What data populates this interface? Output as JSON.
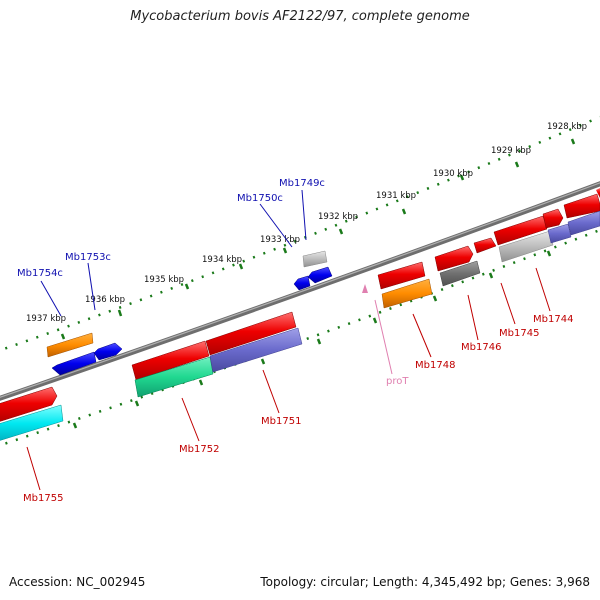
{
  "title": "Mycobacterium bovis AF2122/97, complete genome",
  "footer": {
    "accession": "Accession: NC_002945",
    "summary": "Topology: circular; Length: 4,345,492 bp; Genes: 3,968"
  },
  "kbp_ticks": [
    "1928 kbp",
    "1929 kbp",
    "1930 kbp",
    "1931 kbp",
    "1932 kbp",
    "1933 kbp",
    "1934 kbp",
    "1935 kbp",
    "1936 kbp",
    "1937 kbp"
  ],
  "colors": {
    "tick_green": "#1a7a1a",
    "backbone": "#7a7a7a",
    "plus_strand_label": "#1010b0",
    "minus_strand_label": "#c00000",
    "rna_label": "#e080b0"
  },
  "genes": [
    {
      "id": "Mb1755",
      "strand": "minus"
    },
    {
      "id": "Mb1754c",
      "strand": "plus"
    },
    {
      "id": "Mb1753c",
      "strand": "plus"
    },
    {
      "id": "Mb1752",
      "strand": "minus"
    },
    {
      "id": "Mb1751",
      "strand": "minus"
    },
    {
      "id": "Mb1750c",
      "strand": "plus"
    },
    {
      "id": "Mb1749c",
      "strand": "plus"
    },
    {
      "id": "proT",
      "strand": "rna"
    },
    {
      "id": "Mb1748",
      "strand": "minus"
    },
    {
      "id": "Mb1746",
      "strand": "minus"
    },
    {
      "id": "Mb1745",
      "strand": "minus"
    },
    {
      "id": "Mb1744",
      "strand": "minus"
    }
  ]
}
